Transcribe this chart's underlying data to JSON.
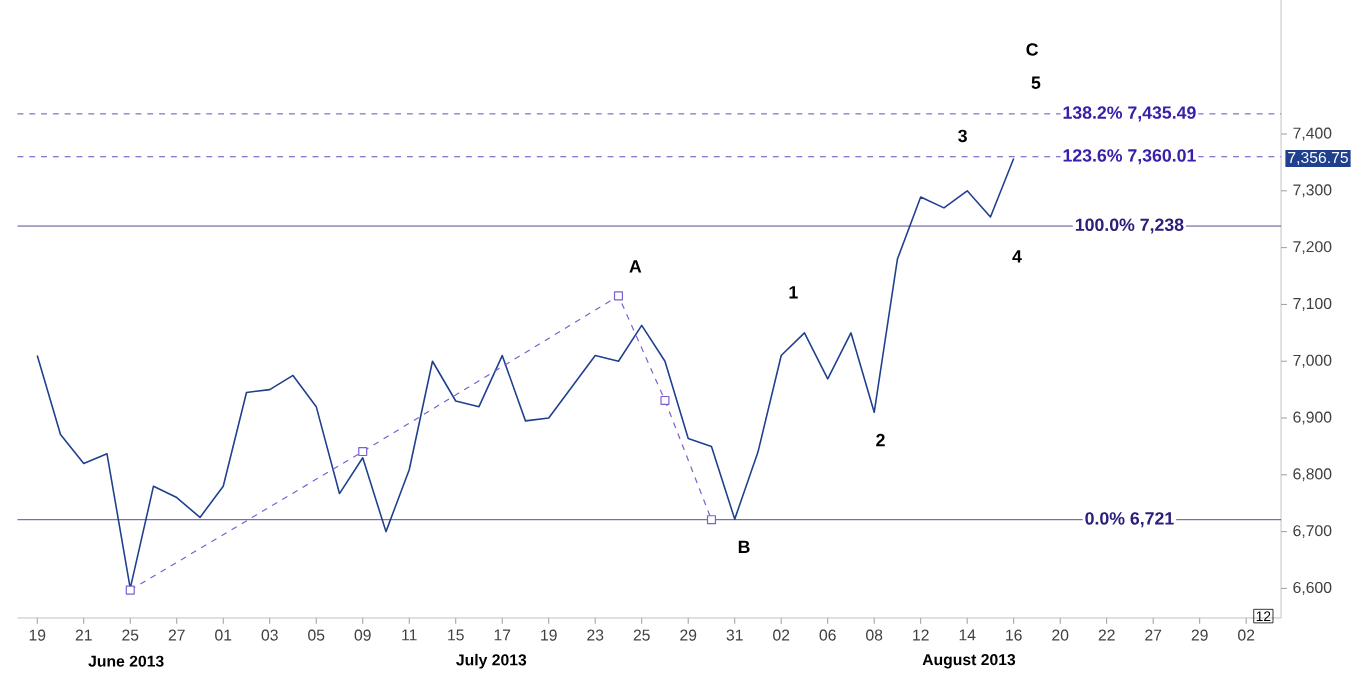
{
  "chart_data": {
    "type": "line",
    "ylim": [
      6548,
      7636
    ],
    "categories": [
      "19",
      null,
      "21",
      null,
      "25",
      null,
      "27",
      null,
      "01",
      null,
      "03",
      null,
      "05",
      null,
      "09",
      null,
      "11",
      null,
      "15",
      null,
      "17",
      null,
      "19",
      null,
      "23",
      null,
      "25",
      null,
      "29",
      null,
      "31",
      null,
      "02",
      null,
      "06",
      null,
      "08",
      null,
      "12",
      null,
      "14",
      null,
      "16",
      null,
      "20",
      null,
      "22",
      null,
      "27",
      null,
      "29",
      null,
      "02"
    ],
    "yticks": [
      {
        "value": 6600,
        "label": "6,600"
      },
      {
        "value": 6700,
        "label": "6,700"
      },
      {
        "value": 6800,
        "label": "6,800"
      },
      {
        "value": 6900,
        "label": "6,900"
      },
      {
        "value": 7000,
        "label": "7,000"
      },
      {
        "value": 7100,
        "label": "7,100"
      },
      {
        "value": 7200,
        "label": "7,200"
      },
      {
        "value": 7300,
        "label": "7,300"
      },
      {
        "value": 7400,
        "label": "7,400"
      }
    ],
    "series": [
      {
        "color": "#1f3f8f",
        "marker": "none",
        "line_style": "solid",
        "values": [
          7010,
          6871,
          6820,
          6837,
          6600,
          6780,
          6760,
          6725,
          6780,
          6945,
          6950,
          6975,
          6920,
          6767,
          6830,
          6700,
          6809,
          7000,
          6930,
          6920,
          7010,
          6895,
          6900,
          6955,
          7010,
          7000,
          7063,
          7000,
          6864,
          6850,
          6722,
          6840,
          7010,
          7050,
          6969,
          7050,
          6910,
          7180,
          7289,
          7270,
          7300,
          7254,
          7357,
          null,
          null,
          null,
          null,
          null,
          null,
          null,
          null,
          null,
          null
        ]
      },
      {
        "color": "#7b5fd0",
        "marker": "square",
        "line_style": "dashed",
        "values": [
          null,
          null,
          null,
          null,
          6597,
          null,
          null,
          null,
          null,
          null,
          null,
          null,
          null,
          null,
          6841,
          null,
          null,
          null,
          null,
          null,
          null,
          null,
          null,
          null,
          null,
          7115,
          null,
          6931,
          null,
          6721,
          null,
          null,
          null,
          null,
          null,
          null,
          null,
          null,
          null,
          null,
          null,
          null,
          null,
          null,
          null,
          null,
          null,
          null,
          null,
          null,
          null,
          null,
          null
        ]
      }
    ],
    "ref_lines": [
      {
        "axis": "y",
        "value": 7435.49,
        "label": "138.2% 7,435.49",
        "color": "#3b1fa8",
        "line_style": "dashed"
      },
      {
        "axis": "y",
        "value": 7360.01,
        "label": "123.6% 7,360.01",
        "color": "#3b1fa8",
        "line_style": "dashed"
      },
      {
        "axis": "y",
        "value": 7238,
        "label": "100.0% 7,238",
        "color": "#2a1f7a",
        "line_style": "solid"
      },
      {
        "axis": "y",
        "value": 6721,
        "label": "0.0% 6,721",
        "color": "#2a1f7a",
        "line_style": "solid"
      }
    ],
    "annotations": [
      "A",
      "B",
      "C",
      "5",
      "1",
      "2",
      "3",
      "4",
      "7,356.75",
      "June 2013",
      "July 2013",
      "August 2013",
      "12"
    ]
  }
}
